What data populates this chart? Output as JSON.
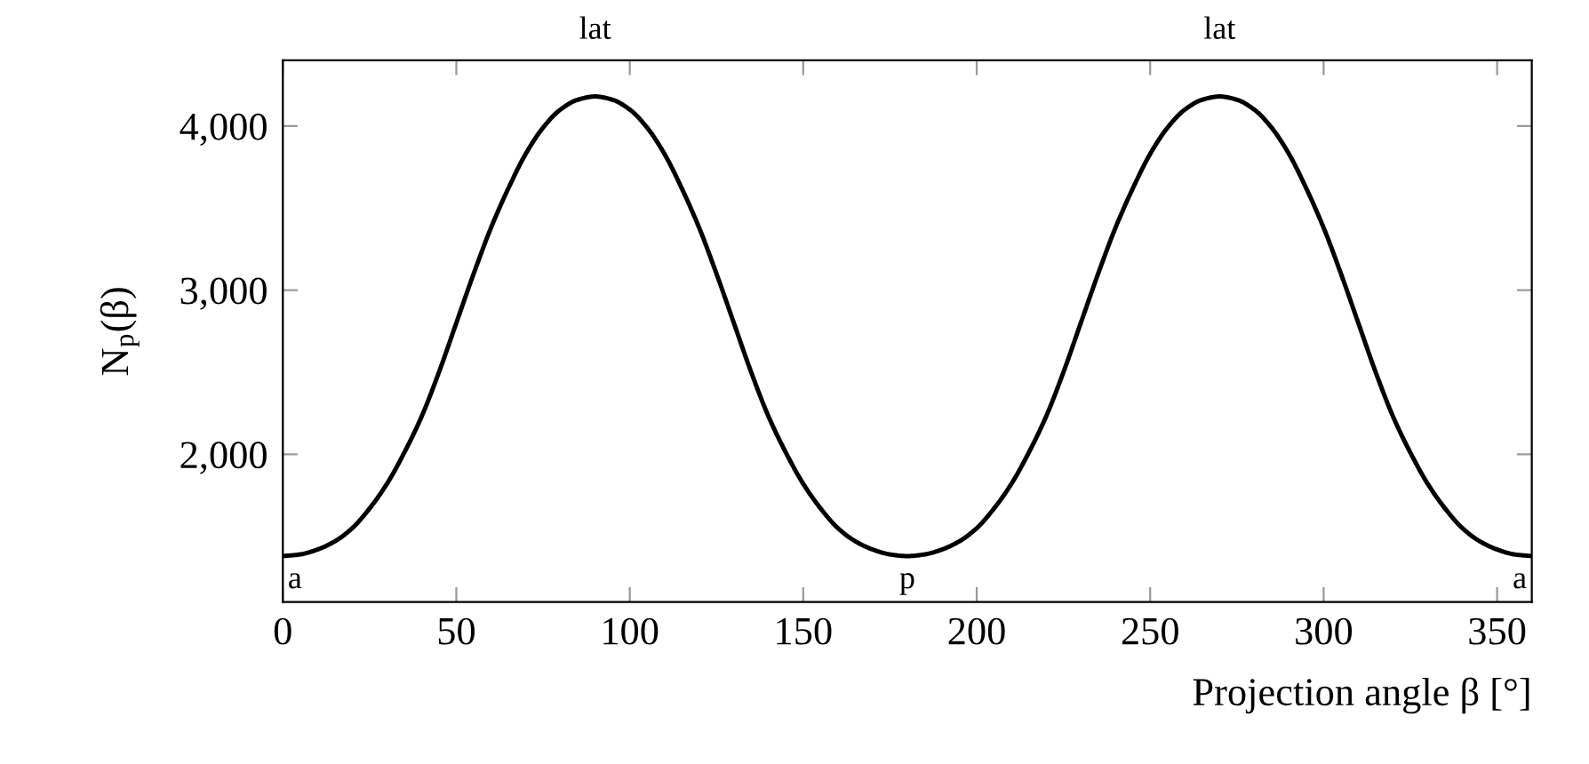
{
  "chart_data": {
    "type": "line",
    "xlabel": "Projection angle β [°]",
    "ylabel": "N$_{p}$(β)",
    "series": [
      {
        "color": "#000000",
        "x": [
          0,
          5,
          10,
          15,
          20,
          25,
          30,
          35,
          40,
          45,
          50,
          55,
          60,
          65,
          70,
          75,
          80,
          85,
          90,
          95,
          100,
          105,
          110,
          115,
          120,
          125,
          130,
          135,
          140,
          145,
          150,
          155,
          160,
          165,
          170,
          175,
          180,
          185,
          190,
          195,
          200,
          205,
          210,
          215,
          220,
          225,
          230,
          235,
          240,
          245,
          250,
          255,
          260,
          265,
          270,
          275,
          280,
          285,
          290,
          295,
          300,
          305,
          310,
          315,
          320,
          325,
          330,
          335,
          340,
          345,
          350,
          355,
          360
        ],
        "values": [
          1380,
          1390,
          1420,
          1470,
          1550,
          1670,
          1820,
          2010,
          2230,
          2500,
          2800,
          3100,
          3380,
          3620,
          3830,
          3990,
          4100,
          4160,
          4180,
          4160,
          4100,
          3990,
          3830,
          3620,
          3380,
          3100,
          2800,
          2500,
          2230,
          2010,
          1820,
          1670,
          1550,
          1470,
          1420,
          1390,
          1380,
          1390,
          1420,
          1470,
          1550,
          1670,
          1820,
          2010,
          2230,
          2500,
          2800,
          3100,
          3380,
          3620,
          3830,
          3990,
          4100,
          4160,
          4180,
          4160,
          4100,
          3990,
          3830,
          3620,
          3380,
          3100,
          2800,
          2500,
          2230,
          2010,
          1820,
          1670,
          1550,
          1470,
          1420,
          1390,
          1380
        ]
      }
    ],
    "xlim": [
      0,
      360
    ],
    "ylim": [
      1100,
      4400
    ],
    "xticks": [
      0,
      50,
      100,
      150,
      200,
      250,
      300,
      350
    ],
    "yticks": [
      {
        "value": 2000,
        "label": "2,000"
      },
      {
        "value": 3000,
        "label": "3,000"
      },
      {
        "value": 4000,
        "label": "4,000"
      }
    ],
    "annotations": [
      {
        "text": "lat",
        "x": 90,
        "y": 4180
      },
      {
        "text": "lat",
        "x": 270,
        "y": 4180
      },
      {
        "text": "a",
        "x": 0,
        "y": 1380
      },
      {
        "text": "p",
        "x": 180,
        "y": 1380
      },
      {
        "text": "a",
        "x": 360,
        "y": 1380
      }
    ],
    "marker": "none",
    "line_style": "solid",
    "grid": false,
    "legend": false
  }
}
